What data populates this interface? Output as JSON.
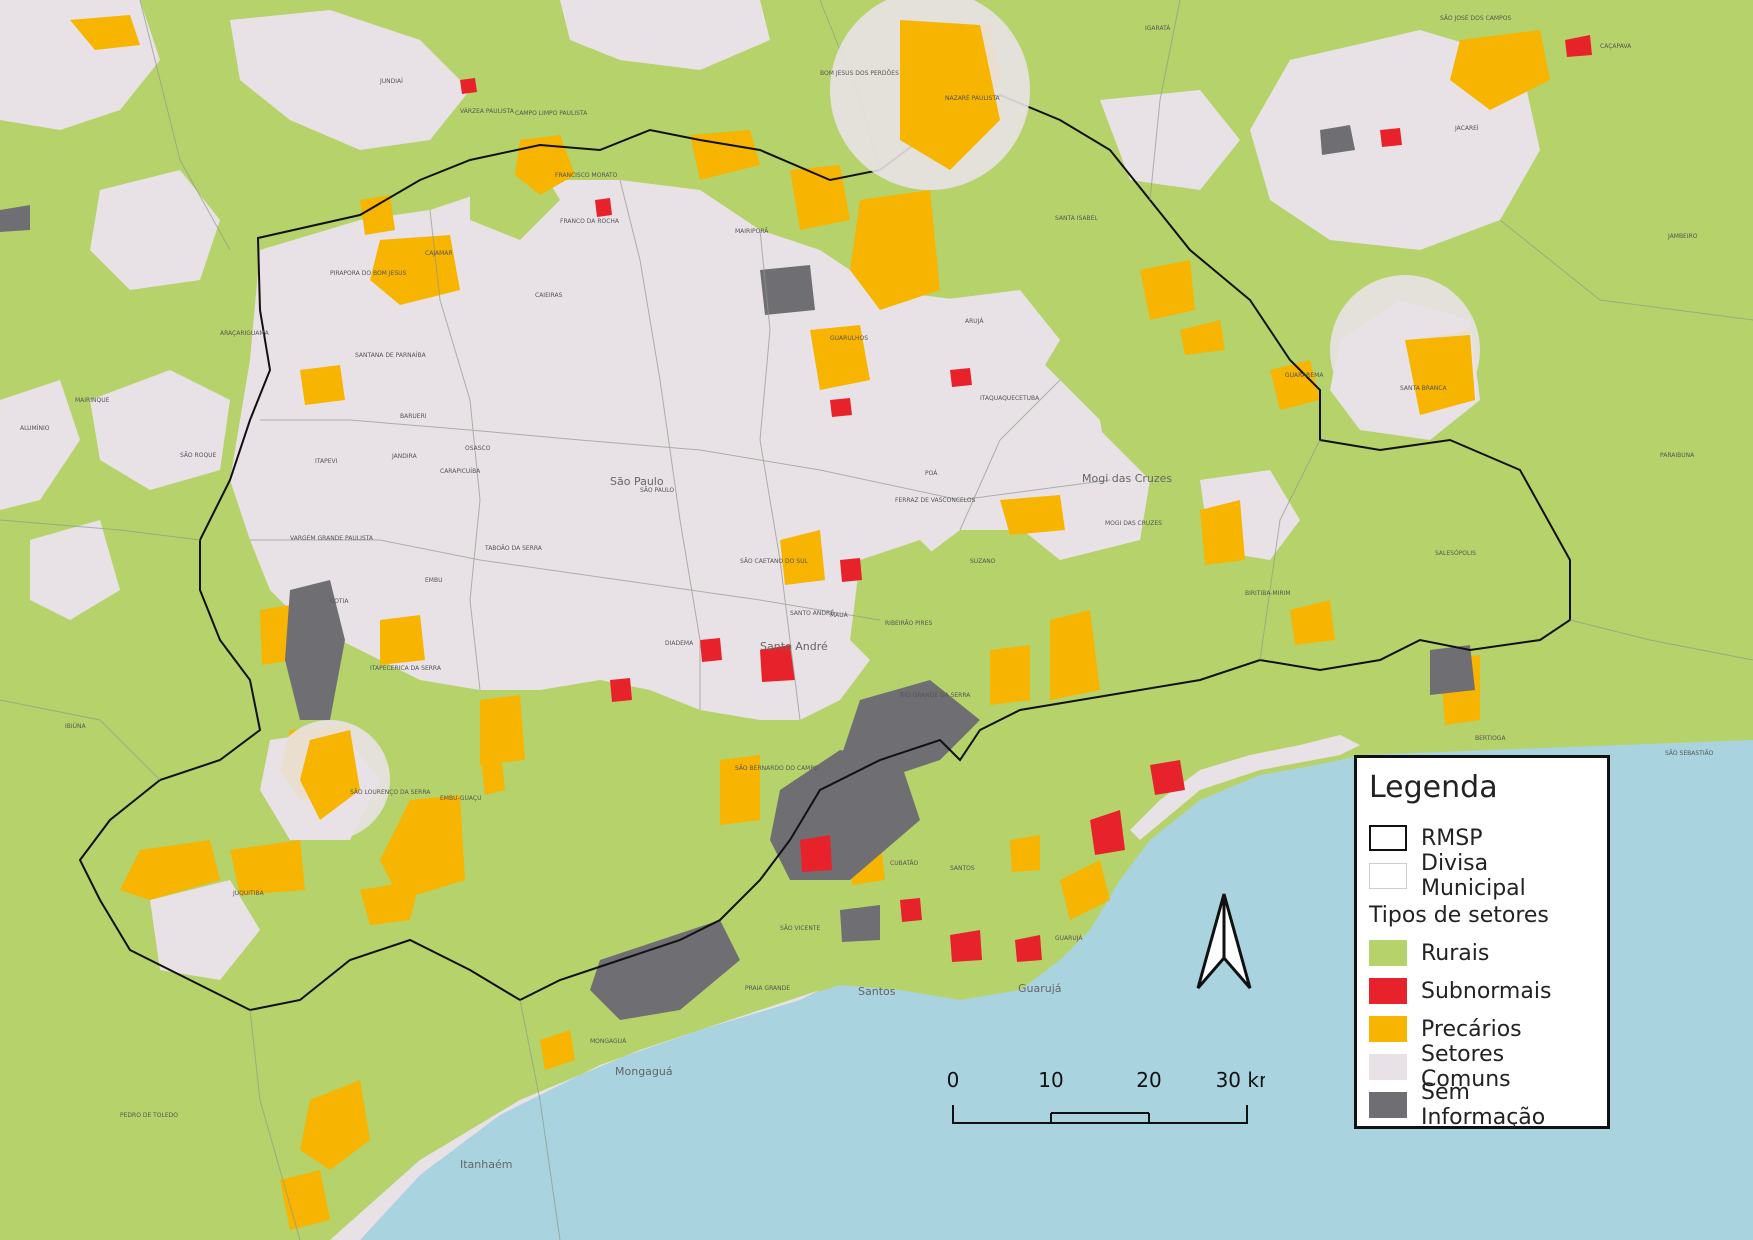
{
  "legend": {
    "title": "Legenda",
    "boundaries": [
      {
        "label": "RMSP",
        "color": "#ffffff",
        "border": "#111111"
      },
      {
        "label": "Divisa Municipal",
        "color": "#ffffff",
        "border": "#cccccc"
      }
    ],
    "types_title": "Tipos de setores",
    "types": [
      {
        "label": "Rurais",
        "color": "#b6d36b"
      },
      {
        "label": "Subnormais",
        "color": "#e8222b"
      },
      {
        "label": "Precários",
        "color": "#f7b400"
      },
      {
        "label": "Setores Comuns",
        "color": "#e8e2e6"
      },
      {
        "label": "Sem Informação",
        "color": "#6f6f73"
      }
    ]
  },
  "scale": {
    "labels": [
      "0",
      "10",
      "20",
      "30 km"
    ]
  },
  "colors": {
    "sea": "#a9d3df",
    "rural": "#b6d36b",
    "common": "#e8e2e6",
    "precarious": "#f7b400",
    "subnormal": "#e8222b",
    "noinfo": "#6f6f73",
    "rmsp_border": "#111111",
    "muni_border": "#8f9a88"
  },
  "north_arrow": "north-arrow-icon",
  "place_labels": [
    "JUNDIAÍ",
    "VÁRZEA PAULISTA",
    "CAMPO LIMPO PAULISTA",
    "BOM JESUS DOS PERDÕES",
    "NAZARÉ PAULISTA",
    "FRANCISCO MORATO",
    "FRANCO DA ROCHA",
    "MAIRIPORÃ",
    "CAJAMAR",
    "PIRAPORA DO BOM JESUS",
    "CAIEIRAS",
    "SANTANA DE PARNAÍBA",
    "ARAÇARIGUAMA",
    "GUARULHOS",
    "ARUJÁ",
    "ITAQUAQUECETUBA",
    "SANTA ISABEL",
    "SÃO JOSÉ DOS CAMPOS",
    "JACAREÍ",
    "IGARATÁ",
    "GUARAREMA",
    "SANTA BRANCA",
    "BARUERI",
    "OSASCO",
    "CARAPICUÍBA",
    "ITAPEVI",
    "JANDIRA",
    "COTIA",
    "SÃO ROQUE",
    "VARGEM GRANDE PAULISTA",
    "TABOÃO DA SERRA",
    "EMBU",
    "ITAPECERICA DA SERRA",
    "SÃO LOURENÇO DA SERRA",
    "EMBU-GUAÇU",
    "JUQUITIBA",
    "SÃO PAULO",
    "SÃO CAETANO DO SUL",
    "SANTO ANDRÉ",
    "MAUÁ",
    "RIBEIRÃO PIRES",
    "RIO GRANDE DA SERRA",
    "SÃO BERNARDO DO CAMPO",
    "DIADEMA",
    "FERRAZ DE VASCONCELOS",
    "POÁ",
    "SUZANO",
    "MOGI DAS CRUZES",
    "BIRITIBA-MIRIM",
    "SALESÓPOLIS",
    "BERTIOGA",
    "CUBATÃO",
    "SANTOS",
    "SÃO VICENTE",
    "PRAIA GRANDE",
    "MONGAGUÁ",
    "GUARUJÁ",
    "PEDRO DE TOLEDO",
    "IBIÚNA",
    "ALUMÍNIO",
    "MAIRINQUE",
    "PARAIBUNA",
    "JAMBEIRO",
    "SÃO SEBASTIÃO",
    "CAÇAPAVA"
  ],
  "city_labels": [
    "São Paulo",
    "Santo André",
    "Mogi das Cruzes",
    "Guarujá",
    "Santos",
    "Itanhaém",
    "Mongaguá"
  ]
}
